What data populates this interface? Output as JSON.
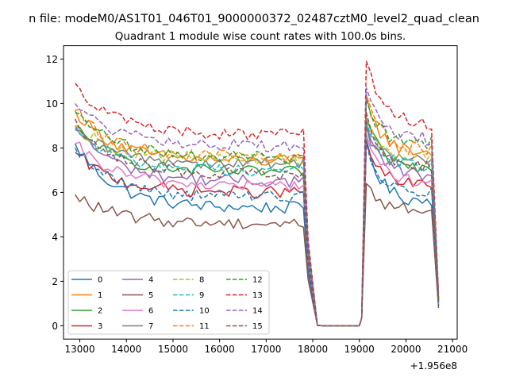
{
  "suptitle": "n file: modeM0/AS1T01_046T01_9000000372_02487cztM0_level2_quad_clean",
  "chart_data": {
    "type": "line",
    "title": "Quadrant 1 module wise count rates with 100.0s bins.",
    "xlabel": "",
    "ylabel": "",
    "x_offset_label": "+1.956e8",
    "xlim": [
      12650,
      21100
    ],
    "ylim": [
      -0.6,
      12.6
    ],
    "xticks": [
      13000,
      14000,
      15000,
      16000,
      17000,
      18000,
      19000,
      20000,
      21000
    ],
    "yticks": [
      0,
      2,
      4,
      6,
      8,
      10,
      12
    ],
    "xtick_labels": [
      "13000",
      "14000",
      "15000",
      "16000",
      "17000",
      "18000",
      "19000",
      "20000",
      "21000"
    ],
    "ytick_labels": [
      "0",
      "2",
      "4",
      "6",
      "8",
      "10",
      "12"
    ],
    "legend_placement": "lower-left",
    "legend_columns": 4,
    "segments": {
      "on1": [
        12900,
        17850
      ],
      "drop1": [
        17850,
        18100
      ],
      "off": [
        18100,
        19050
      ],
      "rise2": [
        19050,
        19150
      ],
      "on2": [
        19150,
        20600
      ],
      "drop2": [
        20600,
        20700
      ],
      "bin_width_s": 100
    },
    "series": [
      {
        "name": "0",
        "color": "#1f77b4",
        "dash": "solid",
        "start": 8.2,
        "level1": 5.3,
        "start2": 8.4,
        "level2": 5.6,
        "end": 0.9
      },
      {
        "name": "1",
        "color": "#ff7f0e",
        "dash": "solid",
        "start": 9.7,
        "level1": 7.4,
        "start2": 10.4,
        "level2": 7.8,
        "end": 1.2
      },
      {
        "name": "2",
        "color": "#2ca02c",
        "dash": "solid",
        "start": 9.0,
        "level1": 6.9,
        "start2": 9.3,
        "level2": 7.1,
        "end": 1.1
      },
      {
        "name": "3",
        "color": "#d62728",
        "dash": "solid",
        "start": 7.8,
        "level1": 6.0,
        "start2": 8.2,
        "level2": 6.3,
        "end": 1.0
      },
      {
        "name": "4",
        "color": "#9467bd",
        "dash": "solid",
        "start": 9.0,
        "level1": 6.5,
        "start2": 9.0,
        "level2": 6.8,
        "end": 1.1
      },
      {
        "name": "5",
        "color": "#8c564b",
        "dash": "solid",
        "start": 5.9,
        "level1": 4.6,
        "start2": 6.4,
        "level2": 5.2,
        "end": 0.8
      },
      {
        "name": "6",
        "color": "#e377c2",
        "dash": "solid",
        "start": 8.2,
        "level1": 6.3,
        "start2": 8.6,
        "level2": 6.5,
        "end": 1.0
      },
      {
        "name": "7",
        "color": "#7f7f7f",
        "dash": "solid",
        "start": 8.8,
        "level1": 7.3,
        "start2": 9.1,
        "level2": 7.4,
        "end": 1.1
      },
      {
        "name": "8",
        "color": "#bcbd22",
        "dash": "dashed",
        "start": 9.0,
        "level1": 7.5,
        "start2": 9.3,
        "level2": 7.6,
        "end": 1.1
      },
      {
        "name": "9",
        "color": "#17becf",
        "dash": "dashed",
        "start": 8.9,
        "level1": 7.0,
        "start2": 9.2,
        "level2": 7.2,
        "end": 1.1
      },
      {
        "name": "10",
        "color": "#1f77b4",
        "dash": "dashed",
        "start": 8.0,
        "level1": 5.8,
        "start2": 8.3,
        "level2": 6.0,
        "end": 0.9
      },
      {
        "name": "11",
        "color": "#ff7f0e",
        "dash": "dashed",
        "start": 9.7,
        "level1": 7.6,
        "start2": 10.4,
        "level2": 7.9,
        "end": 1.2
      },
      {
        "name": "12",
        "color": "#2ca02c",
        "dash": "dashed",
        "start": 9.6,
        "level1": 7.6,
        "start2": 10.2,
        "level2": 8.2,
        "end": 1.2
      },
      {
        "name": "13",
        "color": "#d62728",
        "dash": "dashed",
        "start": 10.9,
        "level1": 8.6,
        "start2": 11.9,
        "level2": 9.1,
        "end": 1.4
      },
      {
        "name": "14",
        "color": "#9467bd",
        "dash": "dashed",
        "start": 10.0,
        "level1": 8.1,
        "start2": 10.7,
        "level2": 8.4,
        "end": 1.3
      },
      {
        "name": "15",
        "color": "#8c564b",
        "dash": "dashed",
        "start": 9.3,
        "level1": 6.8,
        "start2": 9.6,
        "level2": 7.1,
        "end": 1.2
      }
    ]
  }
}
